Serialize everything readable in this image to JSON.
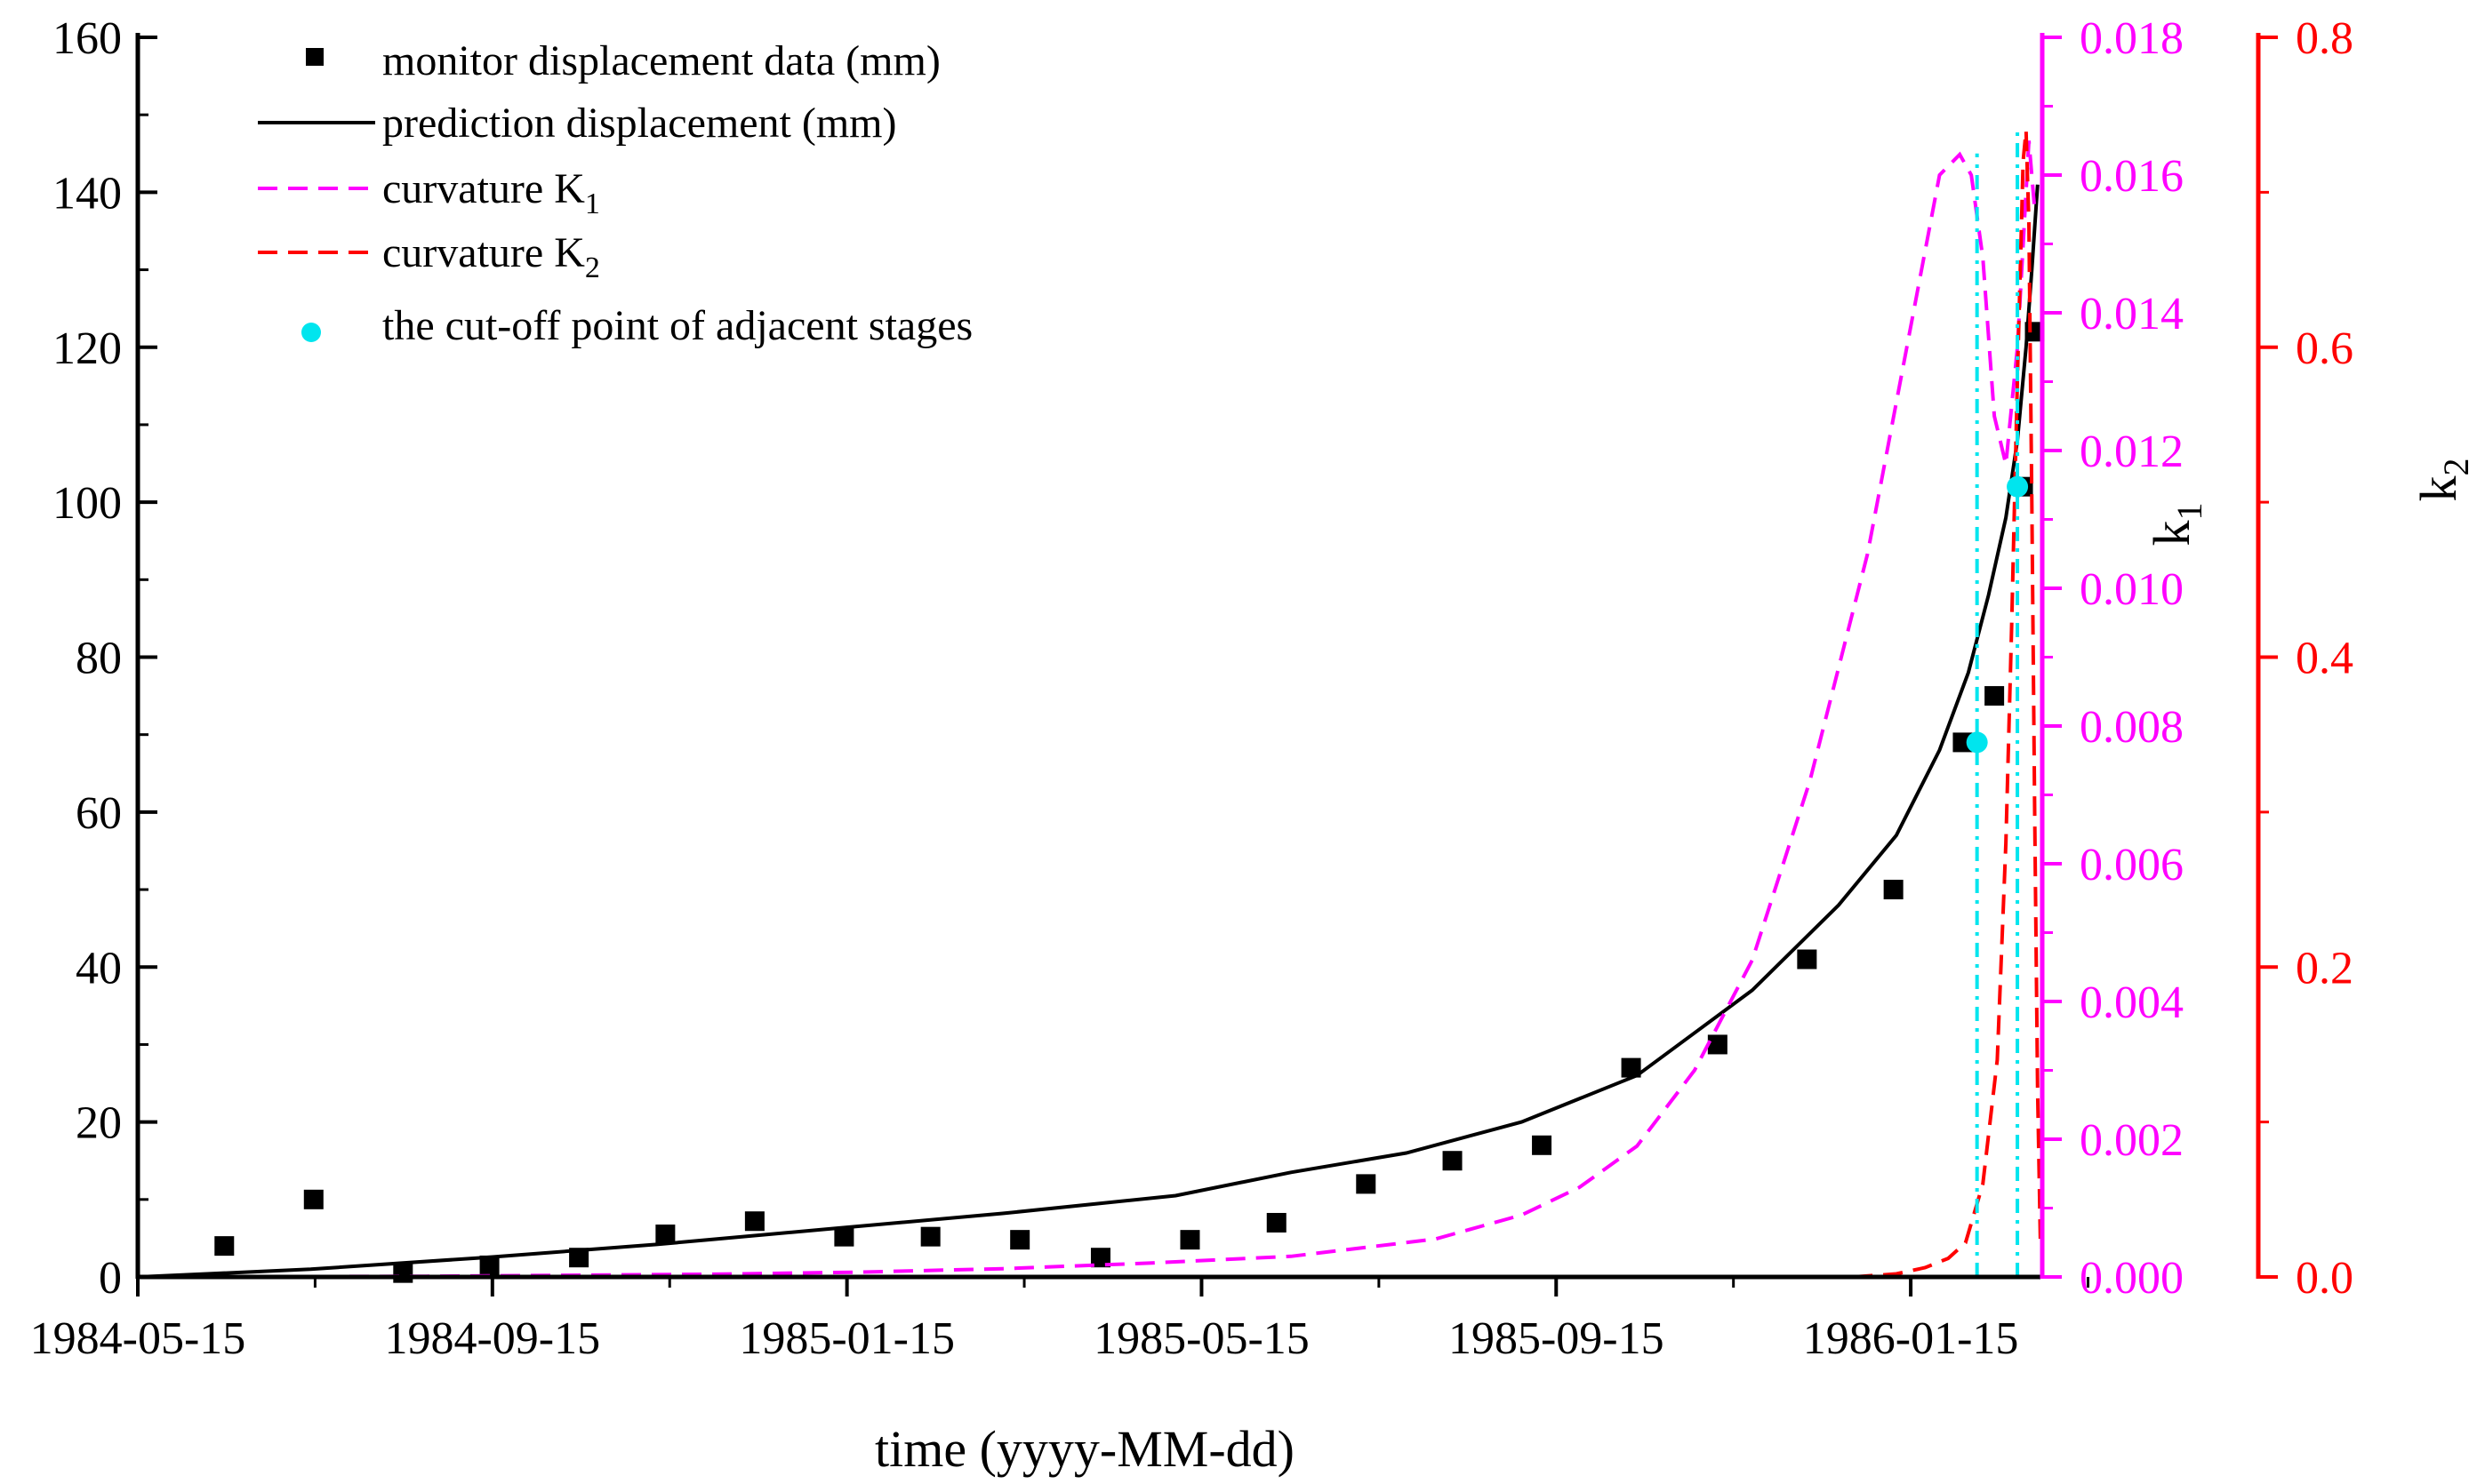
{
  "chart_data": {
    "type": "line",
    "xlabel": "time (yyyy-MM-dd)",
    "x_ticks": [
      "1984-05-15",
      "1984-09-15",
      "1985-01-15",
      "1985-05-15",
      "1985-09-15",
      "1986-01-15"
    ],
    "xlim": [
      0,
      660
    ],
    "x_unit": "days since 1984-05-15",
    "y_left": {
      "label": "",
      "ylim": [
        0,
        160
      ],
      "ticks": [
        "0",
        "20",
        "40",
        "60",
        "80",
        "100",
        "120",
        "140",
        "160"
      ]
    },
    "y_k1": {
      "label": "k",
      "sub": "1",
      "color": "#ff00ff",
      "ylim": [
        0,
        0.018
      ],
      "ticks": [
        "0.000",
        "0.002",
        "0.004",
        "0.006",
        "0.008",
        "0.010",
        "0.012",
        "0.014",
        "0.016",
        "0.018"
      ]
    },
    "y_k2": {
      "label": "k",
      "sub": "2",
      "color": "#ff0000",
      "ylim": [
        0,
        0.8
      ],
      "ticks": [
        "0.0",
        "0.2",
        "0.4",
        "0.6",
        "0.8"
      ]
    },
    "legend": [
      {
        "label": "monitor displacement data (mm)",
        "sub": "",
        "suffix": ""
      },
      {
        "label": "prediction displacement (mm)",
        "sub": "",
        "suffix": ""
      },
      {
        "label": "curvature K",
        "sub": "1",
        "suffix": ""
      },
      {
        "label": "curvature K",
        "sub": "2",
        "suffix": ""
      },
      {
        "label": " the cut-off point of adjacent stages",
        "sub": "",
        "suffix": ""
      }
    ],
    "series": [
      {
        "name": "monitor displacement data (mm)",
        "axis": "left",
        "style": "square-markers",
        "color": "#000000",
        "x": [
          30,
          61,
          92,
          122,
          153,
          183,
          214,
          245,
          275,
          306,
          334,
          365,
          395,
          426,
          456,
          487,
          518,
          548,
          579,
          609,
          633,
          644,
          654,
          658
        ],
        "y": [
          4,
          10,
          0.5,
          1.5,
          2.5,
          5.5,
          7.2,
          5.2,
          5.2,
          4.8,
          2.5,
          4.8,
          7,
          12,
          15,
          17,
          27,
          30,
          41,
          50,
          69,
          75,
          102,
          122
        ]
      },
      {
        "name": "prediction displacement (mm)",
        "axis": "left",
        "style": "solid",
        "color": "#000000",
        "x": [
          0,
          60,
          120,
          180,
          240,
          300,
          360,
          400,
          440,
          480,
          520,
          560,
          590,
          610,
          625,
          635,
          642,
          648,
          652,
          655,
          657,
          659
        ],
        "y": [
          0,
          1,
          2.5,
          4.2,
          6.2,
          8.2,
          10.5,
          13.5,
          16,
          20,
          26,
          37,
          48,
          57,
          68,
          78,
          88,
          98,
          108,
          120,
          130,
          141
        ]
      },
      {
        "name": "curvature K1",
        "axis": "k1",
        "style": "dashed",
        "color": "#ff00ff",
        "x": [
          0,
          100,
          200,
          250,
          300,
          350,
          400,
          450,
          480,
          500,
          520,
          540,
          560,
          580,
          600,
          615,
          625,
          632,
          636,
          640,
          644,
          648,
          652,
          656,
          658
        ],
        "y": [
          0,
          1e-05,
          4e-05,
          7e-05,
          0.00012,
          0.0002,
          0.0003,
          0.00055,
          0.0009,
          0.0013,
          0.0019,
          0.003,
          0.0046,
          0.0072,
          0.0105,
          0.0138,
          0.016,
          0.0163,
          0.016,
          0.0148,
          0.0125,
          0.0118,
          0.0135,
          0.0165,
          0.0155
        ]
      },
      {
        "name": "curvature K2",
        "axis": "k2",
        "style": "dashed",
        "color": "#ff0000",
        "x": [
          595,
          610,
          620,
          628,
          634,
          640,
          645,
          648,
          650,
          652,
          654,
          655,
          656,
          657,
          658,
          659,
          660
        ],
        "y": [
          0,
          0.002,
          0.006,
          0.012,
          0.022,
          0.06,
          0.14,
          0.28,
          0.42,
          0.58,
          0.72,
          0.74,
          0.68,
          0.5,
          0.3,
          0.12,
          0.02
        ]
      }
    ],
    "cutoff_points": [
      {
        "x": 638,
        "y": 69
      },
      {
        "x": 652,
        "y": 102
      }
    ],
    "cutoff_color": "#00e5ee"
  }
}
